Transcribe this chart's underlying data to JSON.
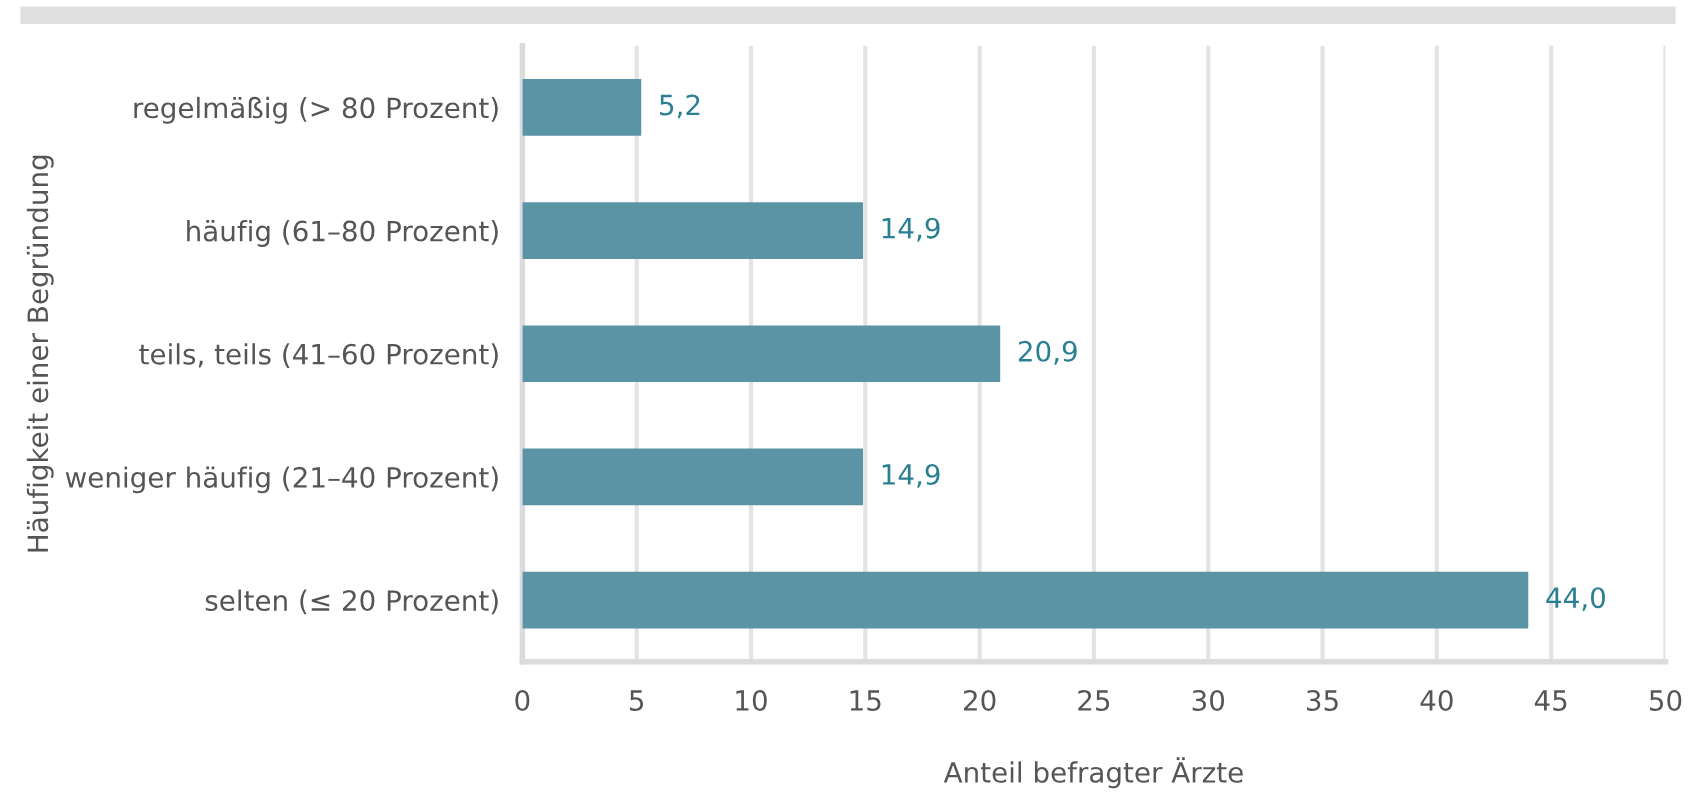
{
  "chart_data": {
    "type": "bar",
    "orientation": "horizontal",
    "xlabel": "Anteil befragter Ärzte",
    "ylabel": "Häufigkeit einer Begründung",
    "categories": [
      "regelmäßig (> 80 Prozent)",
      "häufig (61–80 Prozent)",
      "teils, teils (41–60 Prozent)",
      "weniger häufig (21–40 Prozent)",
      "selten (≤ 20 Prozent)"
    ],
    "values": [
      5.2,
      14.9,
      20.9,
      14.9,
      44.0
    ],
    "value_labels": [
      "5,2",
      "14,9",
      "20,9",
      "14,9",
      "44,0"
    ],
    "color": "#5b95a5",
    "xlim": [
      0,
      50
    ],
    "xticks": [
      0,
      5,
      10,
      15,
      20,
      25,
      30,
      35,
      40,
      45,
      50
    ],
    "grid": "x"
  }
}
